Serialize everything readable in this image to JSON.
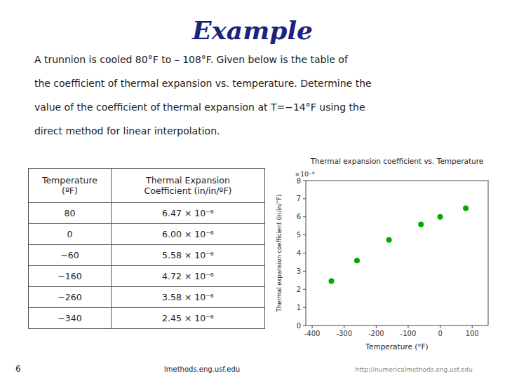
{
  "title": "Example",
  "subtitle": [
    "  A trunnion is cooled 80°F to – 108°F. Given below is the table of",
    "  the coefficient of thermal expansion vs. temperature. Determine the",
    "  value of the coefficient of thermal expansion at T=−14°F using the",
    "  direct method for linear interpolation."
  ],
  "table": {
    "columns": [
      "Temperature\n(ºF)",
      "Thermal Expansion\nCoefficient (in/in/ºF)"
    ],
    "rows": [
      [
        "80",
        "6.47 × 10⁻⁶"
      ],
      [
        "0",
        "6.00 × 10⁻⁶"
      ],
      [
        "−60",
        "5.58 × 10⁻⁶"
      ],
      [
        "−160",
        "4.72 × 10⁻⁶"
      ],
      [
        "−260",
        "3.58 × 10⁻⁶"
      ],
      [
        "−340",
        "2.45 × 10⁻⁶"
      ]
    ]
  },
  "footer": [
    "6",
    "lmethods.eng.usf.edu",
    "http://numericalmethods.eng.usf.edu"
  ],
  "chart_data": {
    "type": "scatter",
    "title": "Thermal expansion coefficient vs. Temperature",
    "x_label": "Temperature (°F)",
    "y_label": "Thermal expansion coefficient (in/in/°F)",
    "annotations": [
      "×10⁻⁶"
    ],
    "x": [
      80,
      0,
      -60,
      -160,
      -260,
      -340
    ],
    "values": [
      6.47,
      6.0,
      5.58,
      4.72,
      3.58,
      2.45
    ],
    "color": "#00aa00",
    "xlim": [
      -420,
      150
    ],
    "xticks": [
      -400,
      -300,
      -200,
      -100,
      0,
      100
    ],
    "ylim": [
      0,
      8
    ],
    "yticks": [
      0,
      1,
      2,
      3,
      4,
      5,
      6,
      7,
      8
    ],
    "grid": false
  }
}
